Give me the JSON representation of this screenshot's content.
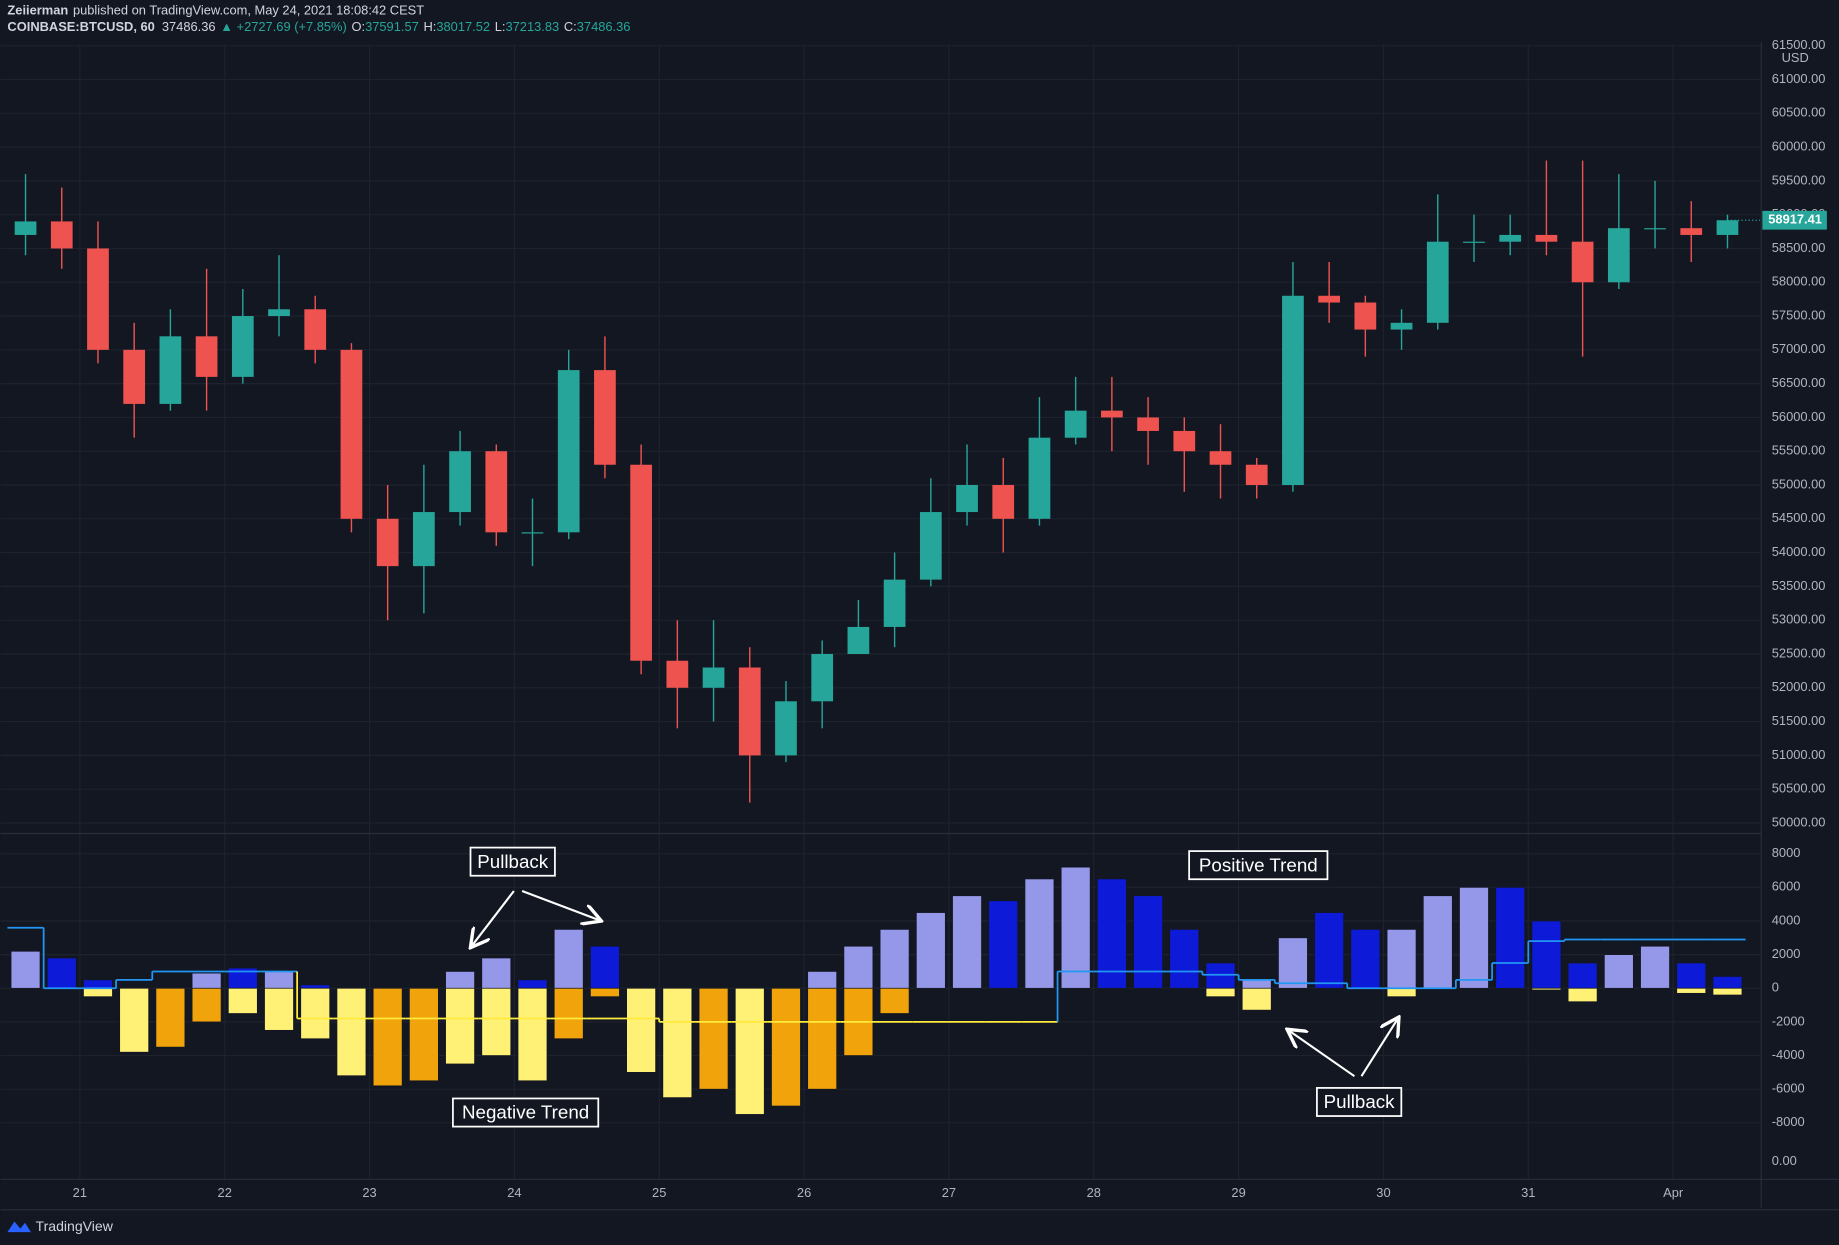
{
  "header": {
    "author": "Zeiierman",
    "published": "published on TradingView.com, May 24, 2021 18:08:42 CEST",
    "symbol": "COINBASE:BTCUSD, 60",
    "last": "37486.36",
    "change": "▲ +2727.69 (+7.85%)",
    "open_label": "O:",
    "open": "37591.57",
    "high_label": "H:",
    "high": "38017.52",
    "low_label": "L:",
    "low": "37213.83",
    "close_label": "C:",
    "close": "37486.36"
  },
  "footer": {
    "brand": "TradingView"
  },
  "annotations": [
    "Pullback",
    "Positive Trend",
    "Negative Trend",
    "Pullback"
  ],
  "chart_data": [
    {
      "type": "candlestick",
      "currency": "USD",
      "up_color": "#26a69a",
      "down_color": "#ef5350",
      "grid": true,
      "open": [
        58700,
        58900,
        58500,
        57000,
        56200,
        57200,
        56600,
        57500,
        57600,
        57000,
        54500,
        53800,
        54600,
        55500,
        54300,
        54300,
        56700,
        55300,
        52400,
        52000,
        52300,
        51000,
        51800,
        52500,
        52900,
        53600,
        54600,
        55000,
        54500,
        55700,
        56100,
        56000,
        55800,
        55500,
        55300,
        55000,
        57800,
        57700,
        57300,
        57400,
        58600,
        58600,
        58700,
        58600,
        58000,
        58800,
        58800,
        58700
      ],
      "high": [
        59600,
        59400,
        58900,
        57400,
        57600,
        58200,
        57900,
        58400,
        57800,
        57100,
        55000,
        55300,
        55800,
        55600,
        54800,
        57000,
        57200,
        55600,
        53000,
        53000,
        52600,
        52100,
        52700,
        53300,
        54000,
        55100,
        55600,
        55400,
        56300,
        56600,
        56600,
        56300,
        56000,
        55900,
        55400,
        58300,
        58300,
        57800,
        57600,
        59300,
        59000,
        59000,
        59800,
        59800,
        59600,
        59500,
        59200,
        59000
      ],
      "low": [
        58400,
        58200,
        56800,
        55700,
        56100,
        56100,
        56500,
        57200,
        56800,
        54300,
        53000,
        53100,
        54400,
        54100,
        53800,
        54200,
        55100,
        52200,
        51400,
        51500,
        50300,
        50900,
        51400,
        52500,
        52600,
        53500,
        54400,
        54000,
        54400,
        55600,
        55500,
        55300,
        54900,
        54800,
        54800,
        54900,
        57400,
        56900,
        57000,
        57300,
        58300,
        58400,
        58400,
        56900,
        57900,
        58500,
        58300,
        58500
      ],
      "close": [
        58900,
        58500,
        57000,
        56200,
        57200,
        56600,
        57500,
        57600,
        57000,
        54500,
        53800,
        54600,
        55500,
        54300,
        54300,
        56700,
        55300,
        52400,
        52000,
        52300,
        51000,
        51800,
        52500,
        52900,
        53600,
        54600,
        55000,
        54500,
        55700,
        56100,
        56000,
        55800,
        55500,
        55300,
        55000,
        57800,
        57700,
        57300,
        57400,
        58600,
        58600,
        58700,
        58600,
        58000,
        58800,
        58800,
        58700,
        58917.41
      ],
      "last_price_label": "58917.41",
      "last_price_color": "#26a69a",
      "xlim": [
        -0.5,
        47.9
      ],
      "ylim": [
        49861,
        61517
      ],
      "yticks": [
        {
          "value": 50000,
          "label": "50000.00"
        },
        {
          "value": 50500,
          "label": "50500.00"
        },
        {
          "value": 51000,
          "label": "51000.00"
        },
        {
          "value": 51500,
          "label": "51500.00"
        },
        {
          "value": 52000,
          "label": "52000.00"
        },
        {
          "value": 52500,
          "label": "52500.00"
        },
        {
          "value": 53000,
          "label": "53000.00"
        },
        {
          "value": 53500,
          "label": "53500.00"
        },
        {
          "value": 54000,
          "label": "54000.00"
        },
        {
          "value": 54500,
          "label": "54500.00"
        },
        {
          "value": 55000,
          "label": "55000.00"
        },
        {
          "value": 55500,
          "label": "55500.00"
        },
        {
          "value": 56000,
          "label": "56000.00"
        },
        {
          "value": 56500,
          "label": "56500.00"
        },
        {
          "value": 57000,
          "label": "57000.00"
        },
        {
          "value": 57500,
          "label": "57500.00"
        },
        {
          "value": 58000,
          "label": "58000.00"
        },
        {
          "value": 58500,
          "label": "58500.00"
        },
        {
          "value": 59000,
          "label": "59000.00"
        },
        {
          "value": 59500,
          "label": "59500.00"
        },
        {
          "value": 60000,
          "label": "60000.00"
        },
        {
          "value": 60500,
          "label": "60500.00"
        },
        {
          "value": 61000,
          "label": "61000.00"
        },
        {
          "value": 61500,
          "label": "61500.00"
        }
      ]
    },
    {
      "type": "bar",
      "grid": true,
      "series": [
        {
          "values": [
            2200,
            1800,
            500,
            null,
            null,
            900,
            1200,
            1000,
            200,
            null,
            null,
            null,
            1000,
            1800,
            500,
            3500,
            2500,
            null,
            null,
            null,
            null,
            null,
            1000,
            2500,
            3500,
            4500,
            5500,
            5200,
            6500,
            7200,
            6500,
            5500,
            3500,
            1500,
            500,
            3000,
            4500,
            3500,
            3500,
            5500,
            6000,
            6000,
            4000,
            1500,
            2000,
            2500,
            1500,
            700
          ],
          "colors": [
            "#9598e8",
            "#0d1bd8",
            "#0d1bd8",
            null,
            null,
            "#9598e8",
            "#0d1bd8",
            "#9598e8",
            "#0d1bd8",
            null,
            null,
            null,
            "#9598e8",
            "#9598e8",
            "#0d1bd8",
            "#9598e8",
            "#0d1bd8",
            null,
            null,
            null,
            null,
            null,
            "#9598e8",
            "#9598e8",
            "#9598e8",
            "#9598e8",
            "#9598e8",
            "#0d1bd8",
            "#9598e8",
            "#9598e8",
            "#0d1bd8",
            "#0d1bd8",
            "#0d1bd8",
            "#0d1bd8",
            "#9598e8",
            "#9598e8",
            "#0d1bd8",
            "#0d1bd8",
            "#9598e8",
            "#9598e8",
            "#9598e8",
            "#0d1bd8",
            "#0d1bd8",
            "#0d1bd8",
            "#9598e8",
            "#9598e8",
            "#0d1bd8",
            "#0d1bd8"
          ]
        },
        {
          "values": [
            null,
            null,
            -500,
            -3800,
            -3500,
            -2000,
            -1500,
            -2500,
            -3000,
            -5200,
            -5800,
            -5500,
            -4500,
            -4000,
            -5500,
            -3000,
            -500,
            -5000,
            -6500,
            -6000,
            -7500,
            -7000,
            -6000,
            -4000,
            -1500,
            null,
            null,
            null,
            null,
            null,
            null,
            null,
            null,
            -500,
            -1300,
            null,
            null,
            null,
            -500,
            null,
            null,
            null,
            -100,
            -800,
            null,
            null,
            -300,
            -400
          ],
          "colors": [
            null,
            null,
            "#fff176",
            "#fff176",
            "#f0a30a",
            "#f0a30a",
            "#fff176",
            "#fff176",
            "#fff176",
            "#fff176",
            "#f0a30a",
            "#f0a30a",
            "#fff176",
            "#fff176",
            "#fff176",
            "#f0a30a",
            "#f0a30a",
            "#fff176",
            "#fff176",
            "#f0a30a",
            "#fff176",
            "#f0a30a",
            "#f0a30a",
            "#f0a30a",
            "#f0a30a",
            null,
            null,
            null,
            null,
            null,
            null,
            null,
            null,
            "#fff176",
            "#fff176",
            null,
            null,
            null,
            "#fff176",
            null,
            null,
            null,
            "#fff176",
            "#fff176",
            null,
            null,
            "#fff176",
            "#fff176"
          ]
        },
        {
          "style": "step",
          "color": "#2196f3",
          "negative_color": "#ffeb3b",
          "values": [
            3600,
            0,
            0,
            500,
            1000,
            1000,
            1000,
            1000,
            -1800,
            -1800,
            -1800,
            -1800,
            -1800,
            -1800,
            -1800,
            -1800,
            -1800,
            -1800,
            -2000,
            -2000,
            -2000,
            -2000,
            -2000,
            -2000,
            -2000,
            -2000,
            -2000,
            -2000,
            -2000,
            1000,
            1000,
            1000,
            1000,
            800,
            500,
            300,
            300,
            0,
            0,
            0,
            500,
            1500,
            2800,
            2900,
            2900,
            2900,
            2900,
            2900
          ]
        }
      ],
      "xlim": [
        -0.5,
        47.9
      ],
      "ylim": [
        -11360,
        9130
      ],
      "yticks": [
        8000,
        6000,
        4000,
        2000,
        0,
        -2000,
        -4000,
        -6000,
        -8000
      ],
      "secondary_label": "0.00",
      "xticks": [
        {
          "value": 1.5,
          "label": "21"
        },
        {
          "value": 5.5,
          "label": "22"
        },
        {
          "value": 9.5,
          "label": "23"
        },
        {
          "value": 13.5,
          "label": "24"
        },
        {
          "value": 17.5,
          "label": "25"
        },
        {
          "value": 21.5,
          "label": "26"
        },
        {
          "value": 25.5,
          "label": "27"
        },
        {
          "value": 29.5,
          "label": "28"
        },
        {
          "value": 33.5,
          "label": "29"
        },
        {
          "value": 37.5,
          "label": "30"
        },
        {
          "value": 41.5,
          "label": "31"
        },
        {
          "value": 45.5,
          "label": "Apr"
        }
      ]
    }
  ]
}
